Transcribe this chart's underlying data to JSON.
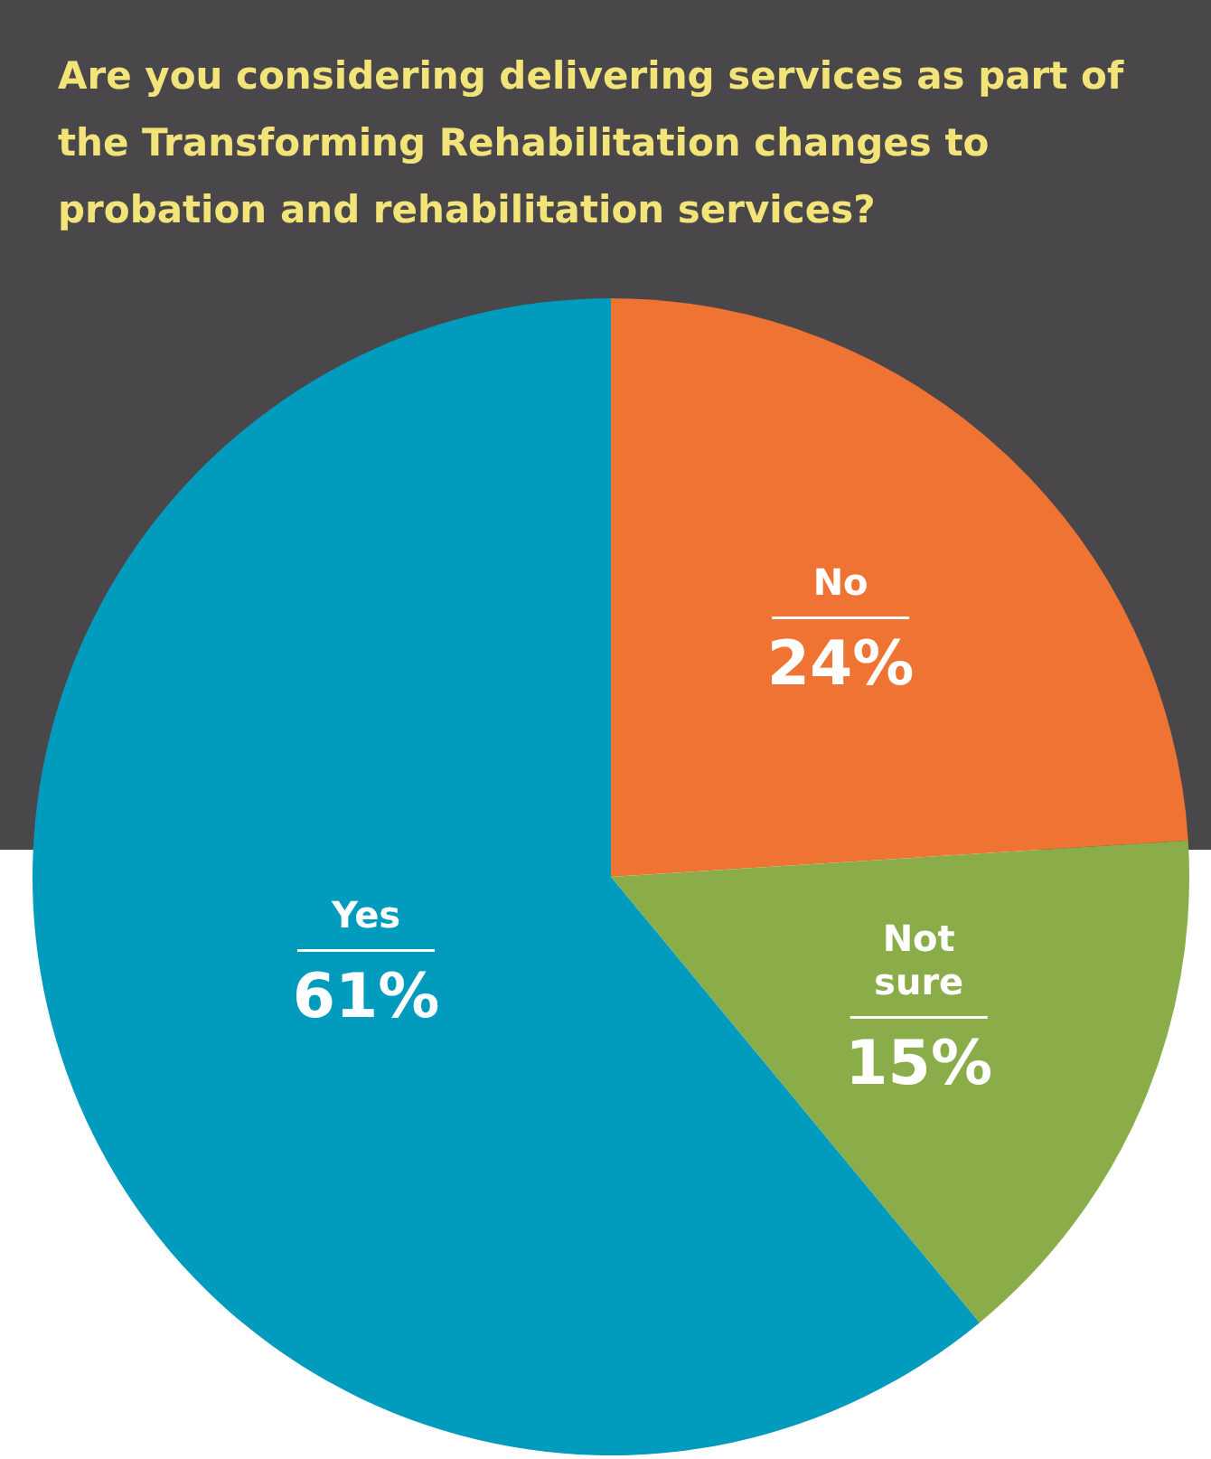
{
  "chart_data": {
    "type": "pie",
    "title": "Are you considering delivering services as part of the Transforming Rehabilitation changes to probation and rehabilitation services?",
    "categories": [
      "No",
      "Not sure",
      "Yes"
    ],
    "values": [
      24,
      15,
      61
    ],
    "colors": [
      "#ef7433",
      "#8aad4a",
      "#009bbd"
    ],
    "value_labels": [
      "24%",
      "15%",
      "61%"
    ]
  }
}
